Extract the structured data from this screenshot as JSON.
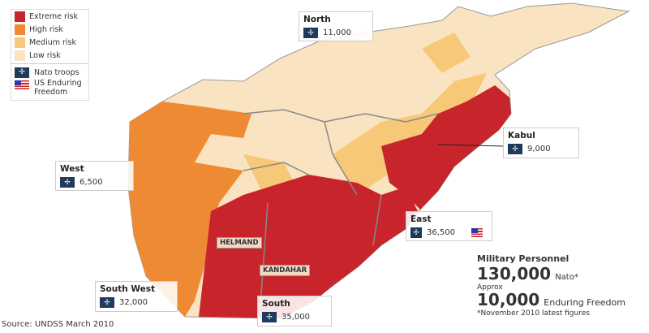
{
  "legend": {
    "items": [
      {
        "label": "Extreme risk",
        "color": "#c8242b"
      },
      {
        "label": "High risk",
        "color": "#ef8a34"
      },
      {
        "label": "Medium risk",
        "color": "#f6c878"
      },
      {
        "label": "Low risk",
        "color": "#f9e3c0"
      }
    ],
    "nato": "Nato troops",
    "us": "US Enduring Freedom"
  },
  "regions": {
    "north": {
      "name": "North",
      "value": "11,000"
    },
    "west": {
      "name": "West",
      "value": "6,500"
    },
    "kabul": {
      "name": "Kabul",
      "value": "9,000"
    },
    "east": {
      "name": "East",
      "value": "36,500"
    },
    "southwest": {
      "name": "South West",
      "value": "32,000"
    },
    "south": {
      "name": "South",
      "value": "35,000"
    }
  },
  "provinces": {
    "helmand": "HELMAND",
    "kandahar": "KANDAHAR"
  },
  "military": {
    "title": "Military Personnel",
    "nato_value": "130,000",
    "nato_label": "Nato*",
    "approx": "Approx",
    "ef_value": "10,000",
    "ef_label": "Enduring Freedom",
    "note": "*November 2010 latest figures"
  },
  "source": "Source: UNDSS March 2010"
}
